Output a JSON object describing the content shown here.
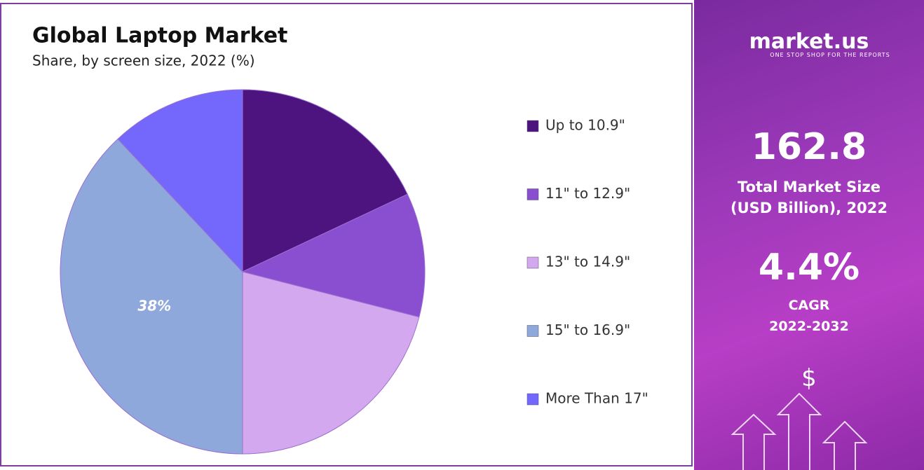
{
  "chart_data": {
    "type": "pie",
    "title": "Global Laptop Market",
    "subtitle": "Share, by screen size, 2022 (%)",
    "categories": [
      "Up to 10.9\"",
      "11\" to 12.9\"",
      "13\" to 14.9\"",
      "15\" to 16.9\"",
      "More Than 17\""
    ],
    "values": [
      18,
      11,
      21,
      38,
      12
    ],
    "value_labels": [
      null,
      null,
      null,
      "38%",
      null
    ],
    "colors": [
      "#4d1480",
      "#8a4fd0",
      "#d4a8ee",
      "#8fa8dc",
      "#7467fc"
    ],
    "legend": "right"
  },
  "side_panel": {
    "brand": "market.us",
    "tagline": "ONE STOP SHOP FOR THE REPORTS",
    "market_size": "162.8",
    "market_size_label_1": "Total Market Size",
    "market_size_label_2": "(USD Billion), 2022",
    "cagr": "4.4%",
    "cagr_label": "CAGR",
    "cagr_period": "2022-2032",
    "icon": "$"
  }
}
